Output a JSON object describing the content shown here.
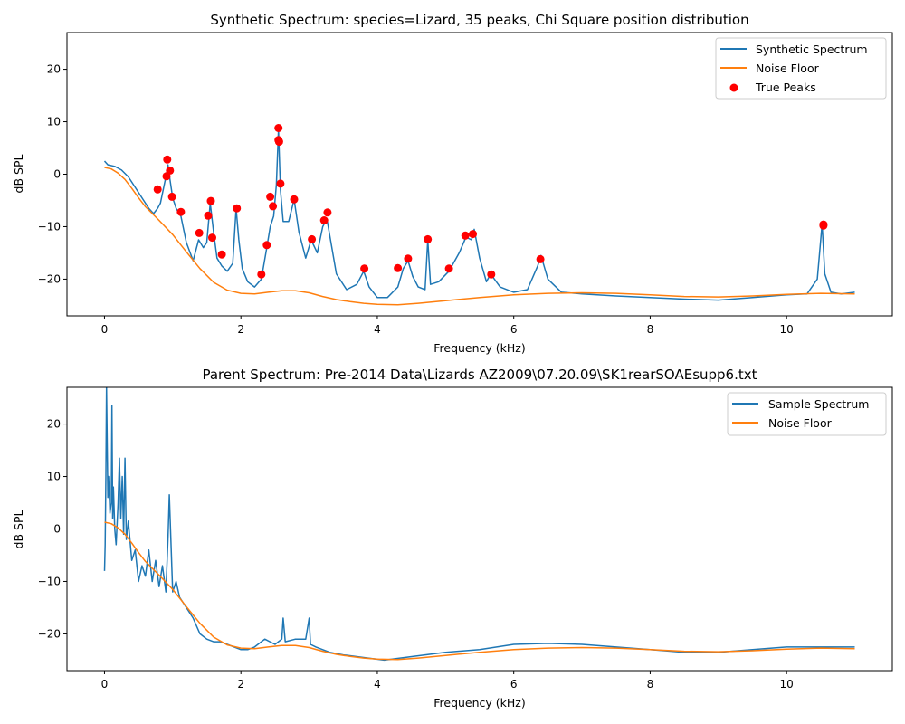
{
  "colors": {
    "spectrum": "#1f77b4",
    "noise": "#ff7f0e",
    "peaks": "#ff0000"
  },
  "chart_data": [
    {
      "type": "line",
      "title": "Synthetic Spectrum: species=Lizard, 35 peaks, Chi Square position distribution",
      "xlabel": "Frequency (kHz)",
      "ylabel": "dB SPL",
      "xlim": [
        -0.55,
        11.55
      ],
      "ylim": [
        -27,
        27
      ],
      "xticks": [
        0,
        2,
        4,
        6,
        8,
        10
      ],
      "yticks": [
        -20,
        -10,
        0,
        10,
        20
      ],
      "grid": false,
      "legend_position": "top-right",
      "series": [
        {
          "name": "Synthetic Spectrum",
          "kind": "line",
          "x": [
            0.0,
            0.05,
            0.15,
            0.25,
            0.35,
            0.45,
            0.55,
            0.65,
            0.72,
            0.78,
            0.82,
            0.86,
            0.9,
            0.93,
            0.96,
            1.0,
            1.05,
            1.12,
            1.2,
            1.3,
            1.38,
            1.45,
            1.5,
            1.55,
            1.6,
            1.65,
            1.72,
            1.8,
            1.88,
            1.93,
            1.97,
            2.02,
            2.1,
            2.2,
            2.3,
            2.38,
            2.43,
            2.48,
            2.52,
            2.55,
            2.58,
            2.62,
            2.7,
            2.78,
            2.85,
            2.95,
            3.03,
            3.12,
            3.2,
            3.26,
            3.32,
            3.4,
            3.55,
            3.7,
            3.8,
            3.88,
            4.0,
            4.15,
            4.3,
            4.38,
            4.45,
            4.52,
            4.6,
            4.7,
            4.74,
            4.78,
            4.9,
            5.05,
            5.2,
            5.3,
            5.38,
            5.42,
            5.5,
            5.6,
            5.66,
            5.8,
            6.0,
            6.2,
            6.35,
            6.4,
            6.5,
            6.7,
            7.0,
            7.5,
            8.0,
            8.5,
            9.0,
            9.5,
            10.0,
            10.3,
            10.45,
            10.52,
            10.56,
            10.65,
            10.8,
            11.0
          ],
          "y": [
            2.5,
            1.8,
            1.5,
            0.8,
            -0.5,
            -2.5,
            -4.5,
            -6.5,
            -7.5,
            -6.5,
            -5.5,
            -3.0,
            -0.5,
            1.8,
            -1.0,
            -4.5,
            -6.5,
            -8.0,
            -13.0,
            -16.5,
            -12.5,
            -14.0,
            -13.0,
            -5.5,
            -11.0,
            -16.0,
            -17.5,
            -18.5,
            -17.0,
            -6.5,
            -12.5,
            -18.0,
            -20.5,
            -21.5,
            -20.0,
            -14.0,
            -10.0,
            -8.0,
            -2.0,
            8.5,
            -3.0,
            -9.0,
            -9.0,
            -4.8,
            -11.0,
            -16.0,
            -12.5,
            -15.0,
            -10.0,
            -8.5,
            -13.0,
            -19.0,
            -22.0,
            -21.0,
            -18.5,
            -21.5,
            -23.5,
            -23.5,
            -21.5,
            -18.0,
            -16.5,
            -19.5,
            -21.5,
            -22.0,
            -12.5,
            -21.0,
            -20.5,
            -18.5,
            -15.0,
            -12.0,
            -12.5,
            -10.5,
            -16.0,
            -20.5,
            -19.0,
            -21.5,
            -22.5,
            -22.0,
            -17.5,
            -15.5,
            -20.0,
            -22.5,
            -22.8,
            -23.2,
            -23.5,
            -23.8,
            -24.0,
            -23.5,
            -23.0,
            -22.8,
            -20.0,
            -9.5,
            -19.0,
            -22.5,
            -22.8,
            -22.5
          ]
        },
        {
          "name": "Noise Floor",
          "kind": "line",
          "x": [
            0.0,
            0.1,
            0.2,
            0.3,
            0.4,
            0.5,
            0.6,
            0.8,
            1.0,
            1.2,
            1.4,
            1.6,
            1.8,
            2.0,
            2.2,
            2.4,
            2.6,
            2.8,
            3.0,
            3.2,
            3.4,
            3.6,
            3.8,
            4.0,
            4.3,
            4.6,
            5.0,
            5.5,
            6.0,
            6.5,
            7.0,
            7.5,
            8.0,
            8.5,
            9.0,
            9.5,
            10.0,
            10.5,
            11.0
          ],
          "y": [
            1.3,
            1.0,
            0.2,
            -1.0,
            -2.7,
            -4.5,
            -6.2,
            -8.8,
            -11.5,
            -14.8,
            -18.0,
            -20.6,
            -22.1,
            -22.7,
            -22.8,
            -22.5,
            -22.2,
            -22.2,
            -22.6,
            -23.3,
            -23.9,
            -24.3,
            -24.6,
            -24.8,
            -24.9,
            -24.6,
            -24.1,
            -23.5,
            -23.0,
            -22.7,
            -22.6,
            -22.7,
            -23.0,
            -23.3,
            -23.4,
            -23.2,
            -22.9,
            -22.7,
            -22.8
          ]
        },
        {
          "name": "True Peaks",
          "kind": "scatter",
          "x": [
            0.78,
            0.91,
            0.92,
            0.96,
            0.99,
            1.12,
            1.39,
            1.52,
            1.56,
            1.58,
            1.72,
            1.94,
            2.3,
            2.38,
            2.43,
            2.47,
            2.55,
            2.55,
            2.56,
            2.58,
            2.78,
            3.04,
            3.22,
            3.27,
            3.81,
            4.3,
            4.45,
            4.74,
            5.05,
            5.29,
            5.4,
            5.67,
            6.39,
            10.54,
            10.54
          ],
          "y": [
            -2.9,
            -0.4,
            2.8,
            0.7,
            -4.3,
            -7.2,
            -11.2,
            -7.9,
            -5.1,
            -12.1,
            -15.3,
            -6.5,
            -19.1,
            -13.5,
            -4.3,
            -6.1,
            8.8,
            6.5,
            6.2,
            -1.8,
            -4.8,
            -12.4,
            -8.8,
            -7.3,
            -18.0,
            -17.9,
            -16.1,
            -12.4,
            -18.0,
            -11.7,
            -11.4,
            -19.1,
            -16.2,
            -9.6,
            -9.8
          ]
        }
      ]
    },
    {
      "type": "line",
      "title": "Parent Spectrum: Pre-2014 Data\\Lizards AZ2009\\07.20.09\\SK1rearSOAEsupp6.txt",
      "xlabel": "Frequency (kHz)",
      "ylabel": "dB SPL",
      "xlim": [
        -0.55,
        11.55
      ],
      "ylim": [
        -27,
        27
      ],
      "xticks": [
        0,
        2,
        4,
        6,
        8,
        10
      ],
      "yticks": [
        -20,
        -10,
        0,
        10,
        20
      ],
      "grid": false,
      "legend_position": "top-right",
      "series": [
        {
          "name": "Sample Spectrum",
          "kind": "line",
          "x": [
            0.0,
            0.01,
            0.02,
            0.03,
            0.05,
            0.06,
            0.08,
            0.1,
            0.11,
            0.12,
            0.13,
            0.15,
            0.17,
            0.2,
            0.22,
            0.24,
            0.26,
            0.28,
            0.3,
            0.32,
            0.35,
            0.4,
            0.45,
            0.5,
            0.55,
            0.6,
            0.65,
            0.7,
            0.75,
            0.8,
            0.85,
            0.9,
            0.93,
            0.95,
            1.0,
            1.05,
            1.1,
            1.2,
            1.3,
            1.4,
            1.5,
            1.6,
            1.7,
            1.8,
            1.9,
            2.0,
            2.1,
            2.2,
            2.35,
            2.5,
            2.6,
            2.62,
            2.65,
            2.8,
            2.95,
            3.0,
            3.02,
            3.1,
            3.3,
            3.5,
            3.8,
            4.1,
            4.4,
            4.7,
            5.0,
            5.5,
            6.0,
            6.5,
            7.0,
            7.5,
            8.0,
            8.5,
            9.0,
            9.5,
            10.0,
            10.5,
            11.0
          ],
          "y": [
            -8.0,
            -3.0,
            10.0,
            27.0,
            6.0,
            10.0,
            3.0,
            5.0,
            23.5,
            2.0,
            8.0,
            0.0,
            -3.0,
            5.0,
            13.5,
            2.0,
            10.0,
            -1.0,
            13.5,
            -2.0,
            1.5,
            -6.0,
            -4.0,
            -10.0,
            -7.0,
            -9.0,
            -4.0,
            -10.0,
            -6.0,
            -11.0,
            -7.0,
            -12.0,
            -2.0,
            6.5,
            -12.0,
            -10.0,
            -13.0,
            -15.0,
            -17.0,
            -20.0,
            -21.0,
            -21.5,
            -21.5,
            -22.0,
            -22.5,
            -23.0,
            -23.0,
            -22.5,
            -21.0,
            -22.0,
            -21.0,
            -17.0,
            -21.5,
            -21.0,
            -21.0,
            -17.0,
            -22.0,
            -22.5,
            -23.5,
            -24.0,
            -24.5,
            -25.0,
            -24.5,
            -24.0,
            -23.5,
            -23.0,
            -22.0,
            -21.8,
            -22.0,
            -22.5,
            -23.0,
            -23.5,
            -23.5,
            -23.0,
            -22.5,
            -22.5,
            -22.5
          ]
        },
        {
          "name": "Noise Floor",
          "kind": "line",
          "x": [
            0.0,
            0.1,
            0.2,
            0.3,
            0.4,
            0.5,
            0.6,
            0.8,
            1.0,
            1.2,
            1.4,
            1.6,
            1.8,
            2.0,
            2.2,
            2.4,
            2.6,
            2.8,
            3.0,
            3.2,
            3.4,
            3.6,
            3.8,
            4.0,
            4.3,
            4.6,
            5.0,
            5.5,
            6.0,
            6.5,
            7.0,
            7.5,
            8.0,
            8.5,
            9.0,
            9.5,
            10.0,
            10.5,
            11.0
          ],
          "y": [
            1.3,
            1.0,
            0.2,
            -1.0,
            -2.7,
            -4.5,
            -6.2,
            -8.8,
            -11.5,
            -14.8,
            -18.0,
            -20.6,
            -22.1,
            -22.7,
            -22.8,
            -22.5,
            -22.2,
            -22.2,
            -22.6,
            -23.3,
            -23.9,
            -24.3,
            -24.6,
            -24.8,
            -24.9,
            -24.6,
            -24.1,
            -23.5,
            -23.0,
            -22.7,
            -22.6,
            -22.7,
            -23.0,
            -23.3,
            -23.4,
            -23.2,
            -22.9,
            -22.7,
            -22.8
          ]
        }
      ]
    }
  ]
}
